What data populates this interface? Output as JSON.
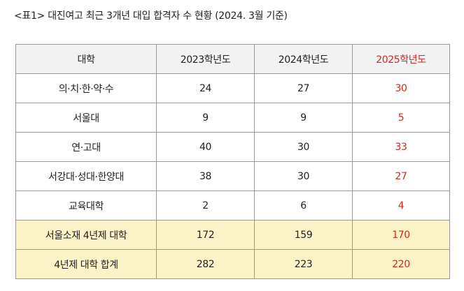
{
  "caption": "<표1> 대진여고 최근 3개년 대입 합격자 수 현황 (2024. 3월 기준)",
  "table": {
    "headers": [
      "대학",
      "2023학년도",
      "2024학년도",
      "2025학년도"
    ],
    "rows": [
      {
        "label": "의·치·한·약·수",
        "v2023": "24",
        "v2024": "27",
        "v2025": "30"
      },
      {
        "label": "서울대",
        "v2023": "9",
        "v2024": "9",
        "v2025": "5"
      },
      {
        "label": "연·고대",
        "v2023": "40",
        "v2024": "30",
        "v2025": "33"
      },
      {
        "label": "서강대·성대·한양대",
        "v2023": "38",
        "v2024": "30",
        "v2025": "27"
      },
      {
        "label": "교육대학",
        "v2023": "2",
        "v2024": "6",
        "v2025": "4"
      },
      {
        "label": "서울소재 4년제 대학",
        "v2023": "172",
        "v2024": "159",
        "v2025": "170"
      },
      {
        "label": "4년제 대학 합계",
        "v2023": "282",
        "v2024": "223",
        "v2025": "220"
      }
    ]
  },
  "colors": {
    "accent": "#d9251c",
    "header_bg": "#f2f2f2",
    "summary_bg": "#fdf3c8",
    "border": "#9a9a9a"
  }
}
